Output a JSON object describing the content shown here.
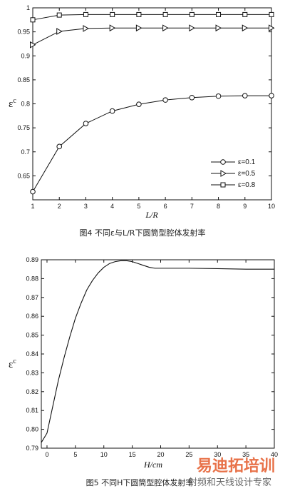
{
  "chart_data": [
    {
      "type": "line",
      "caption": "图4 不同ε与L/R下圆筒型腔体发射率",
      "xlabel": "L/R",
      "ylabel": "ε",
      "ylabel_sup": "c",
      "xlim": [
        1,
        10
      ],
      "ylim": [
        0.6,
        1.0
      ],
      "x": [
        1,
        2,
        3,
        4,
        5,
        6,
        7,
        8,
        9,
        10
      ],
      "x_ticks": [
        "1",
        "2",
        "3",
        "4",
        "5",
        "6",
        "7",
        "8",
        "9",
        "10"
      ],
      "y_ticks": [
        "0.65",
        "0.7",
        "0.75",
        "0.8",
        "0.85",
        "0.9",
        "0.95",
        "1"
      ],
      "y_tick_values": [
        0.65,
        0.7,
        0.75,
        0.8,
        0.85,
        0.9,
        0.95,
        1.0
      ],
      "legend_position": "lower-right",
      "series": [
        {
          "name": "ε=0.1",
          "marker": "circle",
          "values": [
            0.617,
            0.711,
            0.759,
            0.785,
            0.799,
            0.808,
            0.813,
            0.816,
            0.817,
            0.817
          ]
        },
        {
          "name": "ε=0.5",
          "marker": "triangle-right",
          "values": [
            0.923,
            0.951,
            0.957,
            0.958,
            0.958,
            0.958,
            0.958,
            0.958,
            0.958,
            0.958
          ]
        },
        {
          "name": "ε=0.8",
          "marker": "square",
          "values": [
            0.975,
            0.985,
            0.986,
            0.986,
            0.986,
            0.986,
            0.986,
            0.986,
            0.986,
            0.986
          ]
        }
      ]
    },
    {
      "type": "line",
      "caption": "图5 不同H下圆筒型腔体发射率",
      "xlabel": "H/cm",
      "ylabel": "ε",
      "ylabel_sup": "c",
      "xlim": [
        -1,
        40
      ],
      "ylim": [
        0.79,
        0.89
      ],
      "x_ticks": [
        "0",
        "5",
        "10",
        "15",
        "20",
        "25",
        "30",
        "35",
        "40"
      ],
      "x_tick_values": [
        0,
        5,
        10,
        15,
        20,
        25,
        30,
        35,
        40
      ],
      "y_ticks": [
        "0.79",
        "0.80",
        "0.81",
        "0.82",
        "0.83",
        "0.84",
        "0.85",
        "0.86",
        "0.87",
        "0.88",
        "0.89"
      ],
      "y_tick_values": [
        0.79,
        0.8,
        0.81,
        0.82,
        0.83,
        0.84,
        0.85,
        0.86,
        0.87,
        0.88,
        0.89
      ],
      "series": [
        {
          "x": [
            -1,
            0,
            1,
            2,
            3,
            4,
            5,
            6,
            7,
            8,
            9,
            10,
            11,
            12,
            13,
            14,
            15,
            16,
            17,
            18,
            19,
            20,
            22,
            25,
            30,
            35,
            40
          ],
          "values": [
            0.793,
            0.798,
            0.812,
            0.826,
            0.838,
            0.849,
            0.859,
            0.867,
            0.874,
            0.879,
            0.883,
            0.886,
            0.888,
            0.889,
            0.8895,
            0.8895,
            0.889,
            0.888,
            0.887,
            0.886,
            0.8855,
            0.8855,
            0.8855,
            0.8855,
            0.8853,
            0.885,
            0.885
          ]
        }
      ]
    }
  ],
  "watermark": {
    "brand": "易迪拓培训",
    "tagline": "射频和天线设计专家"
  }
}
